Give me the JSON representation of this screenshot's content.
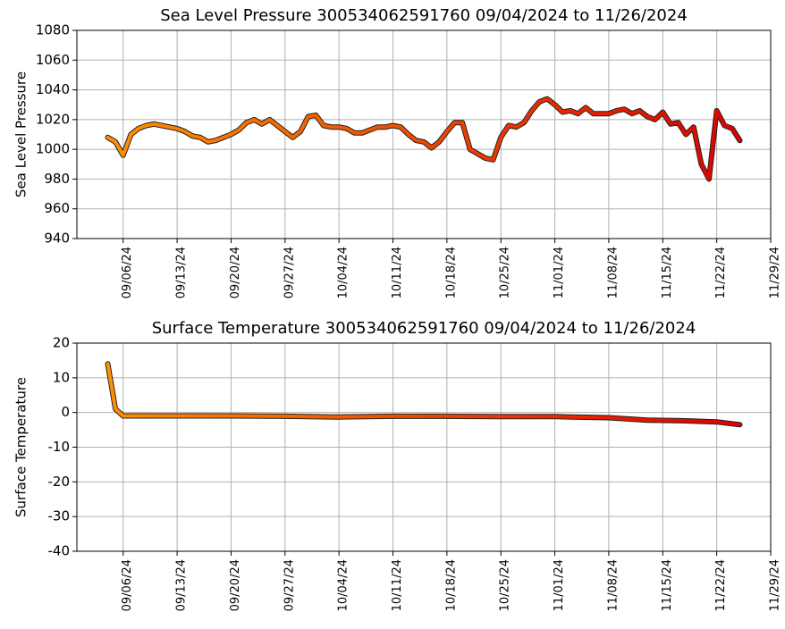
{
  "chart_data": [
    {
      "type": "line",
      "title": "Sea Level Pressure 300534062591760  09/04/2024 to 11/26/2024",
      "ylabel": "Sea Level Pressure",
      "x": [
        "09/04/24",
        "09/05/24",
        "09/06/24",
        "09/07/24",
        "09/08/24",
        "09/09/24",
        "09/10/24",
        "09/11/24",
        "09/12/24",
        "09/13/24",
        "09/14/24",
        "09/15/24",
        "09/16/24",
        "09/17/24",
        "09/18/24",
        "09/19/24",
        "09/20/24",
        "09/21/24",
        "09/22/24",
        "09/23/24",
        "09/24/24",
        "09/25/24",
        "09/26/24",
        "09/27/24",
        "09/28/24",
        "09/29/24",
        "09/30/24",
        "10/01/24",
        "10/02/24",
        "10/03/24",
        "10/04/24",
        "10/05/24",
        "10/06/24",
        "10/07/24",
        "10/08/24",
        "10/09/24",
        "10/10/24",
        "10/11/24",
        "10/12/24",
        "10/13/24",
        "10/14/24",
        "10/15/24",
        "10/16/24",
        "10/17/24",
        "10/18/24",
        "10/19/24",
        "10/20/24",
        "10/21/24",
        "10/22/24",
        "10/23/24",
        "10/24/24",
        "10/25/24",
        "10/26/24",
        "10/27/24",
        "10/28/24",
        "10/29/24",
        "10/30/24",
        "10/31/24",
        "11/01/24",
        "11/02/24",
        "11/03/24",
        "11/04/24",
        "11/05/24",
        "11/06/24",
        "11/07/24",
        "11/08/24",
        "11/09/24",
        "11/10/24",
        "11/11/24",
        "11/12/24",
        "11/13/24",
        "11/14/24",
        "11/15/24",
        "11/16/24",
        "11/17/24",
        "11/18/24",
        "11/19/24",
        "11/20/24",
        "11/21/24",
        "11/22/24",
        "11/23/24",
        "11/24/24",
        "11/25/24"
      ],
      "values": [
        1008,
        1005,
        996,
        1010,
        1014,
        1016,
        1017,
        1016,
        1015,
        1014,
        1012,
        1009,
        1008,
        1005,
        1006,
        1008,
        1010,
        1013,
        1018,
        1020,
        1017,
        1020,
        1016,
        1012,
        1008,
        1012,
        1022,
        1023,
        1016,
        1015,
        1015,
        1014,
        1011,
        1011,
        1013,
        1015,
        1015,
        1016,
        1015,
        1010,
        1006,
        1005,
        1001,
        1005,
        1012,
        1018,
        1018,
        1000,
        997,
        994,
        993,
        1008,
        1016,
        1015,
        1018,
        1026,
        1032,
        1034,
        1030,
        1025,
        1026,
        1024,
        1028,
        1024,
        1024,
        1024,
        1026,
        1027,
        1024,
        1026,
        1022,
        1020,
        1025,
        1017,
        1018,
        1010,
        1015,
        990,
        980,
        1026,
        1016,
        1014,
        1006
      ],
      "colors": [
        "#ff9000",
        "#dd0000"
      ],
      "ylim": [
        940,
        1080
      ],
      "yticks": [
        940,
        960,
        980,
        1000,
        1020,
        1040,
        1060,
        1080
      ],
      "xlim": [
        "08/31/24",
        "11/29/24"
      ],
      "xticks": [
        "09/06/24",
        "09/13/24",
        "09/20/24",
        "09/27/24",
        "10/04/24",
        "10/11/24",
        "10/18/24",
        "10/25/24",
        "11/01/24",
        "11/08/24",
        "11/15/24",
        "11/22/24",
        "11/29/24"
      ],
      "grid": true
    },
    {
      "type": "line",
      "title": "Surface Temperature 300534062591760  09/04/2024 to 11/26/2024",
      "ylabel": "Surface Temperature",
      "x": [
        "09/04/24",
        "09/05/24",
        "09/06/24",
        "09/13/24",
        "09/20/24",
        "09/27/24",
        "10/04/24",
        "10/11/24",
        "10/18/24",
        "10/25/24",
        "11/01/24",
        "11/08/24",
        "11/13/24",
        "11/18/24",
        "11/22/24",
        "11/25/24"
      ],
      "values": [
        14,
        1,
        -1,
        -1,
        -1,
        -1.1,
        -1.3,
        -1.1,
        -1.1,
        -1.2,
        -1.2,
        -1.5,
        -2.2,
        -2.4,
        -2.7,
        -3.5
      ],
      "colors": [
        "#ff9000",
        "#dd0000"
      ],
      "ylim": [
        -40,
        20
      ],
      "yticks": [
        -40,
        -30,
        -20,
        -10,
        0,
        10,
        20
      ],
      "xlim": [
        "08/31/24",
        "11/29/24"
      ],
      "xticks": [
        "09/06/24",
        "09/13/24",
        "09/20/24",
        "09/27/24",
        "10/04/24",
        "10/11/24",
        "10/18/24",
        "10/25/24",
        "11/01/24",
        "11/08/24",
        "11/15/24",
        "11/22/24",
        "11/29/24"
      ],
      "grid": true
    }
  ]
}
